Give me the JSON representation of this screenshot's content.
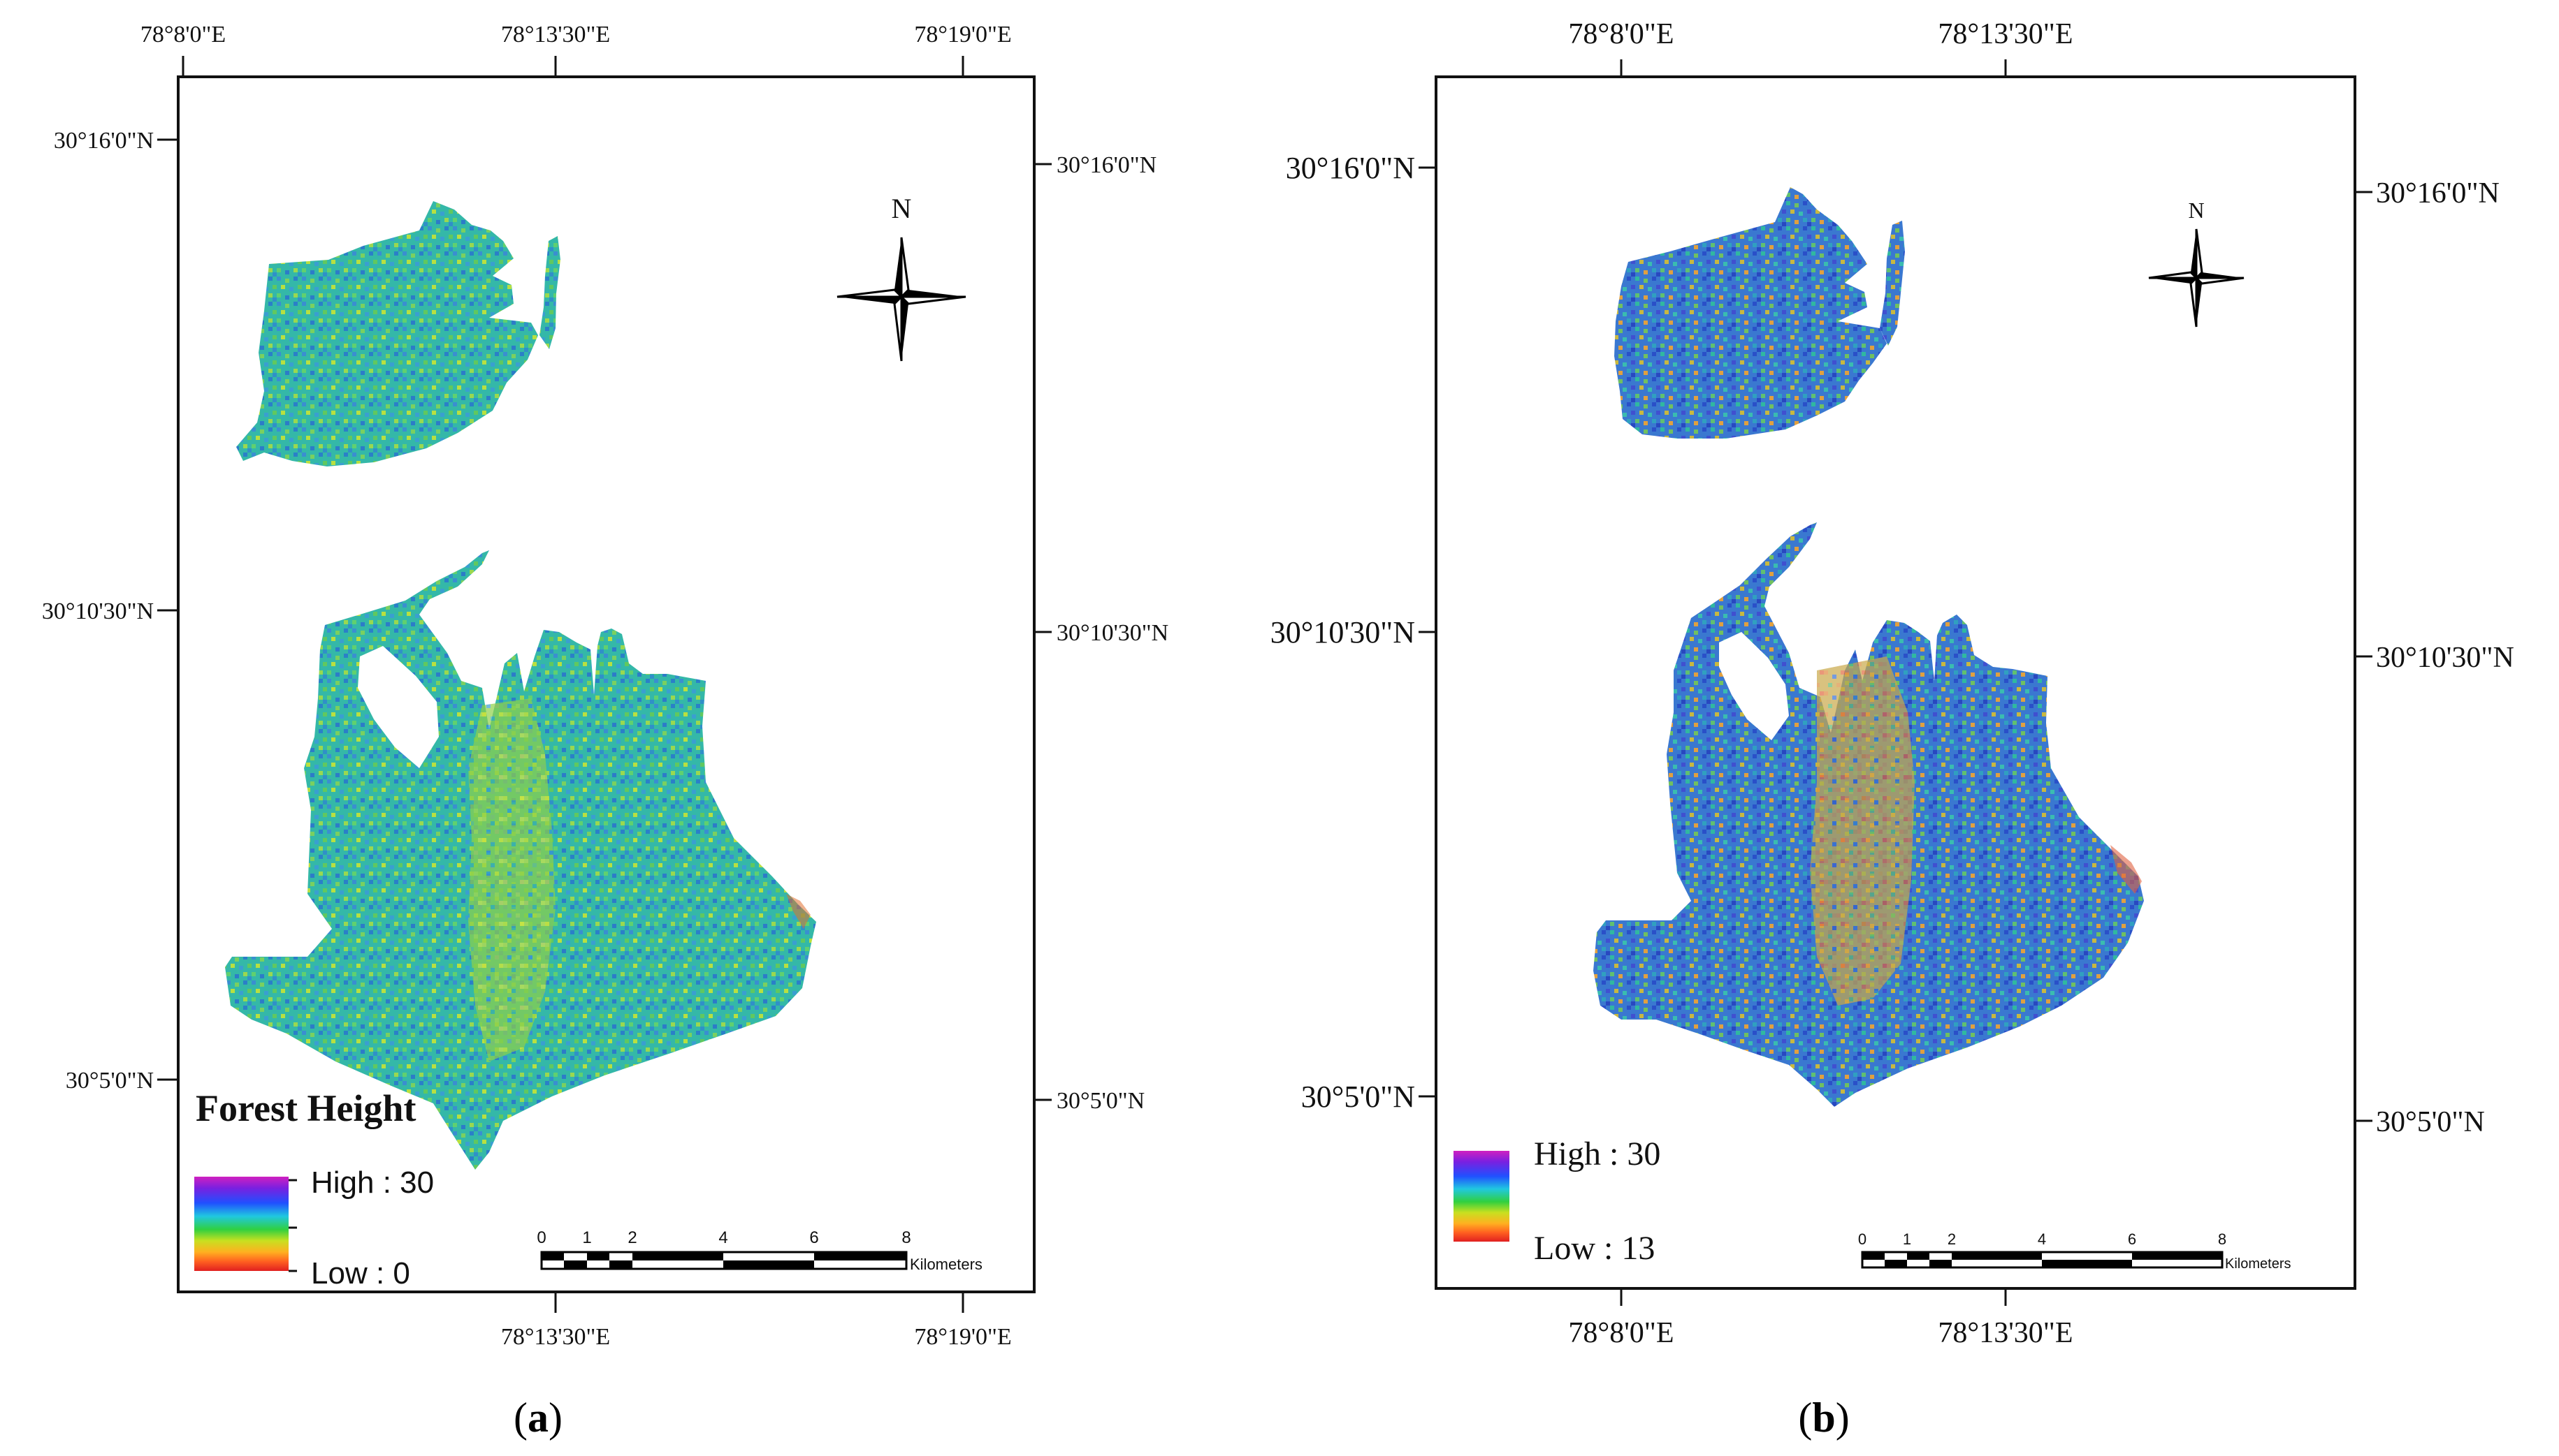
{
  "panels": [
    {
      "id": "a",
      "caption": "a",
      "top_coords": [
        "78°8'0\"E",
        "78°13'30\"E",
        "78°19'0\"E"
      ],
      "bottom_coords": [
        "78°13'30\"E",
        "78°19'0\"E"
      ],
      "left_coords": [
        "30°16'0\"N",
        "30°10'30\"N",
        "30°5'0\"N"
      ],
      "right_coords": [
        "30°16'0\"N",
        "30°10'30\"N",
        "30°5'0\"N"
      ],
      "north_label": "N",
      "legend": {
        "title": "Forest Height",
        "high": "High : 30",
        "low": "Low : 0"
      },
      "scalebar": {
        "ticks": [
          "0",
          "1",
          "2",
          "4",
          "6",
          "8"
        ],
        "unit": "Kilometers"
      }
    },
    {
      "id": "b",
      "caption": "b",
      "top_coords": [
        "78°8'0\"E",
        "78°13'30\"E"
      ],
      "bottom_coords": [
        "78°8'0\"E",
        "78°13'30\"E"
      ],
      "left_coords": [
        "30°16'0\"N",
        "30°10'30\"N",
        "30°5'0\"N"
      ],
      "right_coords": [
        "30°16'0\"N",
        "30°10'30\"N",
        "30°5'0\"N"
      ],
      "north_label": "N",
      "legend": {
        "high": "High : 30",
        "low": "Low : 13"
      },
      "scalebar": {
        "ticks": [
          "0",
          "1",
          "2",
          "4",
          "6",
          "8"
        ],
        "unit": "Kilometers"
      }
    }
  ],
  "legend_colors": [
    "#d020c0",
    "#7a20e0",
    "#2050ff",
    "#20c8e0",
    "#30d040",
    "#c8e020",
    "#ffb020",
    "#ff6020",
    "#e02020"
  ],
  "map_colors_a": [
    "#2ec4a0",
    "#3aa0c8",
    "#6cd060",
    "#2c8cd0",
    "#b8e040",
    "#40b0b0"
  ],
  "map_colors_b": [
    "#3060d8",
    "#2ec4a0",
    "#60c060",
    "#c0c040",
    "#e0a040",
    "#e06040"
  ]
}
